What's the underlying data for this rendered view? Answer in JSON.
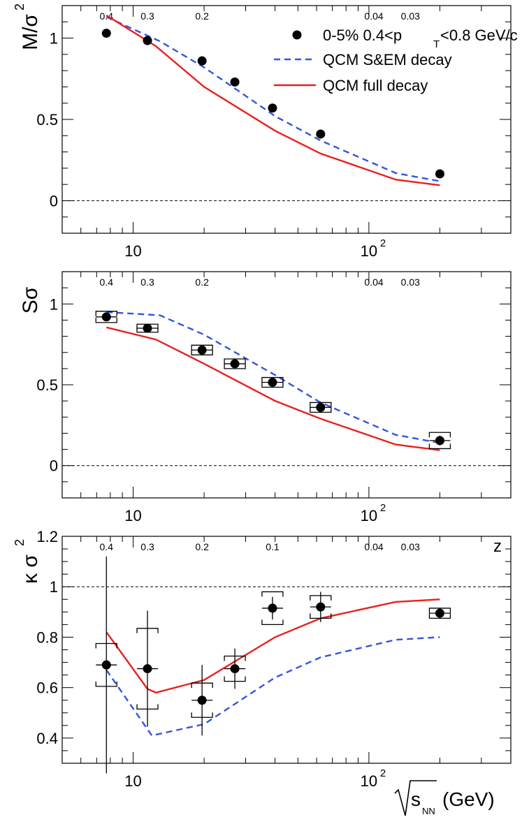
{
  "chart_data": [
    {
      "type": "line",
      "panel": "M/sigma2",
      "ylabel_main": "M/σ",
      "ylabel_sup": "2",
      "ylim": [
        -0.2,
        1.2
      ],
      "xlim": [
        5,
        400
      ],
      "yticks": [
        0,
        0.5,
        1
      ],
      "yticklabels": [
        "0",
        "0.5",
        "1"
      ],
      "xticklabels": [
        {
          "v": 10,
          "base": "10",
          "exp": ""
        },
        {
          "v": 100,
          "base": "10",
          "exp": "2"
        }
      ],
      "top_labels": [
        {
          "x": 7.7,
          "t": "0.4"
        },
        {
          "x": 11.5,
          "t": "0.3"
        },
        {
          "x": 19.6,
          "t": "0.2"
        },
        {
          "x": 105,
          "t": "0.04"
        },
        {
          "x": 150,
          "t": "0.03"
        }
      ],
      "reference_line": 0,
      "legend": {
        "data": "0-5%  0.4<p",
        "data_sub": "T",
        "data_tail": "<0.8 GeV/c",
        "dashed": "QCM S&EM decay",
        "solid": "QCM full decay"
      },
      "data": [
        {
          "x": 7.7,
          "y": 1.03
        },
        {
          "x": 11.5,
          "y": 0.985
        },
        {
          "x": 19.6,
          "y": 0.86
        },
        {
          "x": 27,
          "y": 0.73
        },
        {
          "x": 39,
          "y": 0.57
        },
        {
          "x": 62.4,
          "y": 0.41
        },
        {
          "x": 200,
          "y": 0.165
        }
      ],
      "dashed": [
        [
          7.7,
          1.13
        ],
        [
          13,
          0.98
        ],
        [
          20,
          0.82
        ],
        [
          40,
          0.52
        ],
        [
          62.4,
          0.37
        ],
        [
          130,
          0.17
        ],
        [
          200,
          0.12
        ]
      ],
      "solid": [
        [
          7.7,
          1.14
        ],
        [
          12.5,
          0.95
        ],
        [
          20,
          0.7
        ],
        [
          40,
          0.43
        ],
        [
          62.4,
          0.29
        ],
        [
          130,
          0.13
        ],
        [
          200,
          0.095
        ]
      ]
    },
    {
      "type": "line",
      "panel": "S-sigma",
      "ylabel_main": "Sσ",
      "ylabel_sup": "",
      "ylim": [
        -0.2,
        1.2
      ],
      "xlim": [
        5,
        400
      ],
      "yticks": [
        0,
        0.5,
        1
      ],
      "yticklabels": [
        "0",
        "0.5",
        "1"
      ],
      "xticklabels": [
        {
          "v": 10,
          "base": "10",
          "exp": ""
        },
        {
          "v": 100,
          "base": "10",
          "exp": "2"
        }
      ],
      "top_labels": [
        {
          "x": 7.7,
          "t": "0.4"
        },
        {
          "x": 11.5,
          "t": "0.3"
        },
        {
          "x": 19.6,
          "t": "0.2"
        },
        {
          "x": 105,
          "t": "0.04"
        },
        {
          "x": 150,
          "t": "0.03"
        }
      ],
      "reference_line": 0,
      "data": [
        {
          "x": 7.7,
          "y": 0.92,
          "err": 0.02,
          "sys": 0.035
        },
        {
          "x": 11.5,
          "y": 0.85,
          "err": 0.02,
          "sys": 0.025
        },
        {
          "x": 19.6,
          "y": 0.715,
          "err": 0.02,
          "sys": 0.03
        },
        {
          "x": 27,
          "y": 0.63,
          "err": 0.02,
          "sys": 0.03
        },
        {
          "x": 39,
          "y": 0.515,
          "err": 0.02,
          "sys": 0.03
        },
        {
          "x": 62.4,
          "y": 0.36,
          "err": 0.03,
          "sys": 0.03
        },
        {
          "x": 200,
          "y": 0.155,
          "err": 0.03,
          "sys": 0.05
        }
      ],
      "dashed": [
        [
          7.7,
          0.95
        ],
        [
          13,
          0.93
        ],
        [
          20,
          0.81
        ],
        [
          40,
          0.56
        ],
        [
          62.4,
          0.39
        ],
        [
          130,
          0.19
        ],
        [
          200,
          0.14
        ]
      ],
      "solid": [
        [
          7.7,
          0.855
        ],
        [
          12.5,
          0.78
        ],
        [
          20,
          0.63
        ],
        [
          40,
          0.4
        ],
        [
          62.4,
          0.29
        ],
        [
          130,
          0.13
        ],
        [
          200,
          0.095
        ]
      ]
    },
    {
      "type": "line",
      "panel": "kappa-sigma2",
      "ylabel_main": "κ σ",
      "ylabel_sup": "2",
      "ylim": [
        0.3,
        1.2
      ],
      "xlim": [
        5,
        400
      ],
      "yticks": [
        0.4,
        0.6,
        0.8,
        1,
        1.2
      ],
      "yticklabels": [
        "0.4",
        "0.6",
        "0.8",
        "1",
        "1.2"
      ],
      "xticklabels": [
        {
          "v": 10,
          "base": "10",
          "exp": ""
        },
        {
          "v": 100,
          "base": "10",
          "exp": "2"
        }
      ],
      "top_labels": [
        {
          "x": 7.7,
          "t": "0.4"
        },
        {
          "x": 11.5,
          "t": "0.3"
        },
        {
          "x": 19.6,
          "t": "0.2"
        },
        {
          "x": 39,
          "t": "0.1"
        },
        {
          "x": 105,
          "t": "0.04"
        },
        {
          "x": 150,
          "t": "0.03"
        }
      ],
      "corner_label": "z",
      "reference_line": 1,
      "xlabel": "(GeV)",
      "xlabel_s": "s",
      "xlabel_sub": "NN",
      "data": [
        {
          "x": 7.7,
          "y": 0.69,
          "err": 0.43,
          "sys": 0.085
        },
        {
          "x": 11.5,
          "y": 0.675,
          "err": 0.23,
          "sys": 0.16
        },
        {
          "x": 19.6,
          "y": 0.55,
          "err": 0.14,
          "sys": 0.068
        },
        {
          "x": 27,
          "y": 0.675,
          "err": 0.08,
          "sys": 0.05
        },
        {
          "x": 39,
          "y": 0.915,
          "err": 0.045,
          "sys": 0.065
        },
        {
          "x": 62.4,
          "y": 0.92,
          "err": 0.06,
          "sys": 0.045
        },
        {
          "x": 200,
          "y": 0.895,
          "err": 0.02,
          "sys": 0.02
        }
      ],
      "dashed": [
        [
          7.7,
          0.67
        ],
        [
          12,
          0.41
        ],
        [
          20,
          0.455
        ],
        [
          40,
          0.64
        ],
        [
          62.4,
          0.72
        ],
        [
          130,
          0.79
        ],
        [
          200,
          0.8
        ]
      ],
      "solid": [
        [
          7.7,
          0.82
        ],
        [
          11.5,
          0.595
        ],
        [
          12.5,
          0.58
        ],
        [
          20,
          0.63
        ],
        [
          40,
          0.8
        ],
        [
          62.4,
          0.875
        ],
        [
          130,
          0.94
        ],
        [
          200,
          0.95
        ]
      ]
    }
  ],
  "colors": {
    "dashed": "#3355dd",
    "solid": "#e82020",
    "marker": "#000000"
  }
}
